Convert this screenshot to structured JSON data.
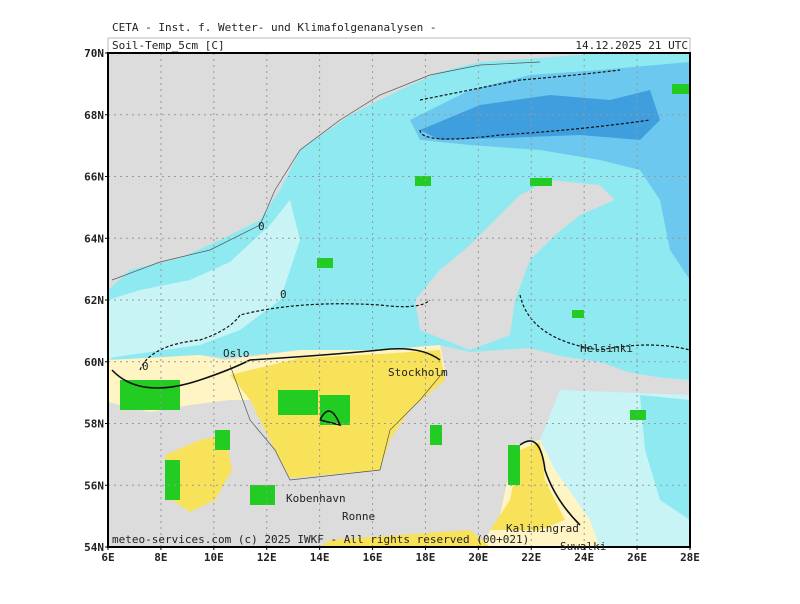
{
  "header": {
    "title": "CETA - Inst. f. Wetter- und Klimafolgenanalysen -",
    "parameter": "Soil-Temp_5cm [C]",
    "valid_time": "14.12.2025 21 UTC"
  },
  "axes": {
    "lat_labels": [
      "70N",
      "68N",
      "66N",
      "64N",
      "62N",
      "60N",
      "58N",
      "56N",
      "54N"
    ],
    "lon_labels": [
      "6E",
      "8E",
      "10E",
      "12E",
      "14E",
      "16E",
      "18E",
      "20E",
      "22E",
      "24E",
      "26E",
      "28E"
    ]
  },
  "places": [
    "Oslo",
    "Stockholm",
    "Helsinki",
    "Kobenhavn",
    "Ronne",
    "Kaliningrad",
    "Suwalki"
  ],
  "contour_labels": [
    "0",
    "0",
    "0"
  ],
  "footer": "meteo-services.com (c) 2025 IWKF - All rights reserved (00+021)"
}
